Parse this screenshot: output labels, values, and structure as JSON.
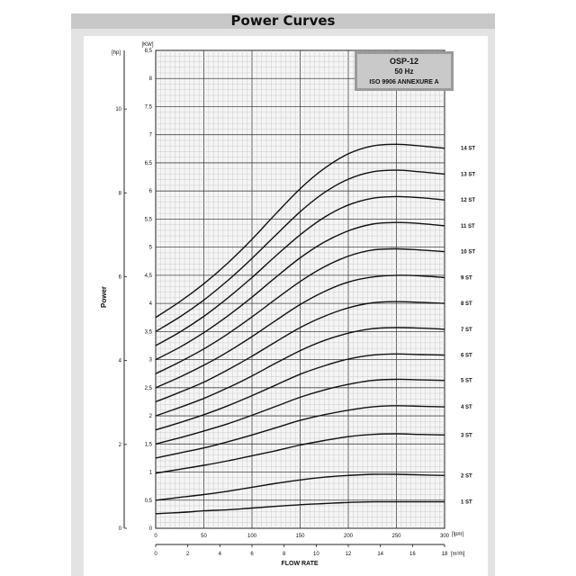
{
  "page": {
    "title": "Power Curves"
  },
  "model_box": {
    "line1": "OSP-12",
    "line2": "50 Hz",
    "line3": "ISO 9906 ANNEXURE A"
  },
  "chart_data": {
    "type": "line",
    "title": "",
    "ylabel": "Power",
    "xlabel": "FLOW RATE",
    "grid": true,
    "x_primary": {
      "unit": "[lpm]",
      "range": [
        0,
        300
      ],
      "ticks": [
        0,
        50,
        100,
        150,
        200,
        250,
        300
      ]
    },
    "x_secondary": {
      "unit": "[m³/h]",
      "range": [
        0,
        18
      ],
      "ticks": [
        0,
        2,
        4,
        6,
        8,
        10,
        12,
        14,
        16,
        18
      ]
    },
    "y_kw": {
      "unit": "[KW]",
      "range": [
        0,
        8.5
      ],
      "tick_labels": [
        "0",
        "0,5",
        "1",
        "1,5",
        "2",
        "2,5",
        "3",
        "3,5",
        "4",
        "4,5",
        "5",
        "5,5",
        "6",
        "6,5",
        "7",
        "7,5",
        "8",
        "8,5"
      ]
    },
    "y_hp": {
      "unit": "[hp]",
      "ticks": [
        0,
        2,
        4,
        6,
        8,
        10
      ]
    },
    "x": [
      0,
      25,
      50,
      75,
      100,
      125,
      150,
      175,
      200,
      225,
      250,
      275,
      300
    ],
    "series": [
      {
        "name": "1 ST",
        "values": [
          0.26,
          0.28,
          0.31,
          0.33,
          0.36,
          0.39,
          0.42,
          0.44,
          0.46,
          0.47,
          0.47,
          0.47,
          0.47
        ]
      },
      {
        "name": "2 ST",
        "values": [
          0.5,
          0.55,
          0.6,
          0.66,
          0.73,
          0.8,
          0.86,
          0.91,
          0.94,
          0.96,
          0.96,
          0.95,
          0.94
        ]
      },
      {
        "name": "3 ST",
        "values": [
          0.98,
          1.05,
          1.12,
          1.2,
          1.29,
          1.38,
          1.48,
          1.56,
          1.63,
          1.67,
          1.68,
          1.67,
          1.66
        ]
      },
      {
        "name": "4 ST",
        "values": [
          1.25,
          1.34,
          1.43,
          1.54,
          1.66,
          1.79,
          1.92,
          2.02,
          2.1,
          2.16,
          2.18,
          2.17,
          2.16
        ]
      },
      {
        "name": "5 ST",
        "values": [
          1.5,
          1.61,
          1.73,
          1.86,
          2.01,
          2.17,
          2.33,
          2.46,
          2.56,
          2.63,
          2.65,
          2.64,
          2.63
        ]
      },
      {
        "name": "6 ST",
        "values": [
          1.75,
          1.88,
          2.02,
          2.18,
          2.36,
          2.55,
          2.74,
          2.89,
          3.01,
          3.08,
          3.1,
          3.09,
          3.08
        ]
      },
      {
        "name": "7 ST",
        "values": [
          2.0,
          2.15,
          2.31,
          2.5,
          2.71,
          2.94,
          3.16,
          3.34,
          3.47,
          3.55,
          3.57,
          3.56,
          3.54
        ]
      },
      {
        "name": "8 ST",
        "values": [
          2.25,
          2.42,
          2.6,
          2.82,
          3.06,
          3.32,
          3.57,
          3.77,
          3.92,
          4.01,
          4.03,
          4.02,
          4.0
        ]
      },
      {
        "name": "9 ST",
        "values": [
          2.5,
          2.69,
          2.9,
          3.14,
          3.41,
          3.7,
          3.98,
          4.21,
          4.38,
          4.47,
          4.5,
          4.49,
          4.46
        ]
      },
      {
        "name": "10 ST",
        "values": [
          2.75,
          2.96,
          3.19,
          3.46,
          3.76,
          4.08,
          4.39,
          4.65,
          4.84,
          4.95,
          4.97,
          4.95,
          4.92
        ]
      },
      {
        "name": "11 ST",
        "values": [
          3.0,
          3.22,
          3.48,
          3.78,
          4.11,
          4.47,
          4.81,
          5.09,
          5.29,
          5.41,
          5.44,
          5.42,
          5.38
        ]
      },
      {
        "name": "12 ST",
        "values": [
          3.25,
          3.49,
          3.77,
          4.1,
          4.46,
          4.85,
          5.22,
          5.53,
          5.75,
          5.87,
          5.9,
          5.88,
          5.84
        ]
      },
      {
        "name": "13 ST",
        "values": [
          3.5,
          3.76,
          4.06,
          4.41,
          4.8,
          5.22,
          5.63,
          5.97,
          6.21,
          6.34,
          6.37,
          6.34,
          6.3
        ]
      },
      {
        "name": "14 ST",
        "values": [
          3.75,
          4.03,
          4.35,
          4.72,
          5.14,
          5.6,
          6.04,
          6.4,
          6.66,
          6.8,
          6.83,
          6.8,
          6.76
        ]
      }
    ]
  }
}
